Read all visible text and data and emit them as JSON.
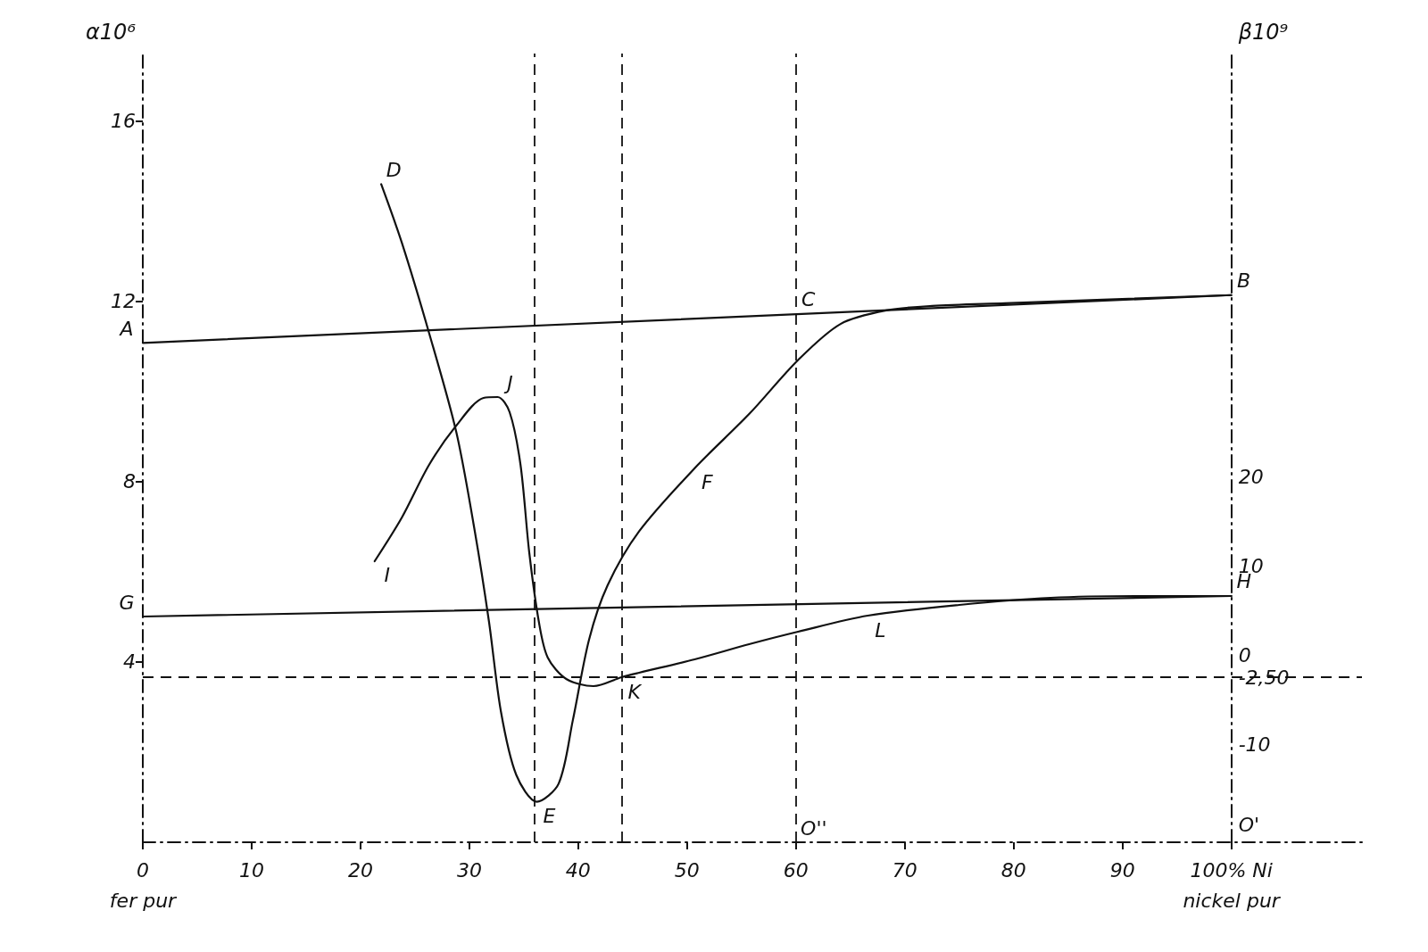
{
  "chart_data": {
    "type": "line",
    "ylabel": "α10⁶",
    "y2label": "β10⁹",
    "marker": "none",
    "line_style": "solid",
    "xlim": [
      0,
      112
    ],
    "xticks": [
      {
        "value": 0,
        "label": "0\nfer pur"
      },
      10,
      20,
      30,
      40,
      50,
      60,
      70,
      80,
      90,
      {
        "value": 100,
        "label": "100% Ni\nnickel pur"
      }
    ],
    "ylim": [
      0,
      17.5
    ],
    "yticks": [
      4,
      8,
      12,
      16
    ],
    "y2lim": [
      -21,
      67.4
    ],
    "y2ticks": [
      {
        "value": -19,
        "label": "O'"
      },
      -10,
      {
        "value": -2.5,
        "label": "-2,50"
      },
      0,
      10,
      20
    ],
    "series": [
      {
        "color": "#111111",
        "x": [
          0,
          100
        ],
        "values": [
          11.08,
          12.14
        ]
      },
      {
        "color": "#111111",
        "x": [
          21.9,
          23.8,
          26.3,
          28.8,
          30.5,
          31.8,
          32.9,
          34.3,
          36.2,
          38.2,
          39.5,
          41.0,
          42.7,
          45.6,
          50.7,
          55.7,
          60.2,
          64.1,
          68.3,
          72.5,
          79.2,
          100
        ],
        "values": [
          14.6,
          13.3,
          11.3,
          9.1,
          6.9,
          4.9,
          2.9,
          1.5,
          0.9,
          1.3,
          2.7,
          4.5,
          5.7,
          6.9,
          8.3,
          9.5,
          10.7,
          11.5,
          11.8,
          11.9,
          11.96,
          12.14
        ]
      },
      {
        "color": "#111111",
        "axis": "y2",
        "x": [
          0,
          100
        ],
        "values": [
          4.3,
          6.6
        ]
      },
      {
        "color": "#111111",
        "axis": "y2",
        "x": [
          21.3,
          23.8,
          26.3,
          28.8,
          31.3,
          32.6,
          33.7,
          34.7,
          35.5,
          36.4,
          37.2,
          38.9,
          41.4,
          44.0,
          45.6,
          50.7,
          55.7,
          60.2,
          66.6,
          75.0,
          83.4,
          91.8,
          100
        ],
        "values": [
          10.5,
          15.4,
          21.3,
          25.7,
          28.8,
          28.9,
          27.2,
          21.3,
          11.5,
          3.6,
          -0.3,
          -2.7,
          -3.5,
          -2.5,
          -2.0,
          -0.5,
          1.2,
          2.6,
          4.4,
          5.6,
          6.4,
          6.6,
          6.6
        ]
      }
    ],
    "ref_lines": [
      {
        "axis": "x",
        "value": 36,
        "line_style": "dashed",
        "color": "#111111"
      },
      {
        "axis": "x",
        "value": 44,
        "line_style": "dashed",
        "color": "#111111"
      },
      {
        "axis": "x",
        "value": 60,
        "line_style": "dashed",
        "color": "#111111"
      },
      {
        "axis": "y2",
        "value": -2.5,
        "line_style": "dashed",
        "color": "#111111"
      }
    ],
    "annotations": [
      {
        "text": "A",
        "x": 0,
        "y": 11.08
      },
      {
        "text": "B",
        "x": 100,
        "y": 12.14
      },
      {
        "text": "C",
        "x": 60,
        "y": 11.72
      },
      {
        "text": "D",
        "x": 21.9,
        "y": 14.6
      },
      {
        "text": "E",
        "x": 36.2,
        "y": 0.9
      },
      {
        "text": "F",
        "x": 50.7,
        "y": 8.3
      },
      {
        "text": "G",
        "x": 0,
        "y": 5.008
      },
      {
        "text": "H",
        "x": 100,
        "y": 5.464
      },
      {
        "text": "I",
        "x": 21.3,
        "y": 6.236
      },
      {
        "text": "J",
        "x": 32.6,
        "y": 9.878
      },
      {
        "text": "K",
        "x": 44.0,
        "y": 3.662
      },
      {
        "text": "L",
        "x": 66.6,
        "y": 5.028
      },
      {
        "text": "O''",
        "x": 60,
        "y": 0
      }
    ]
  }
}
